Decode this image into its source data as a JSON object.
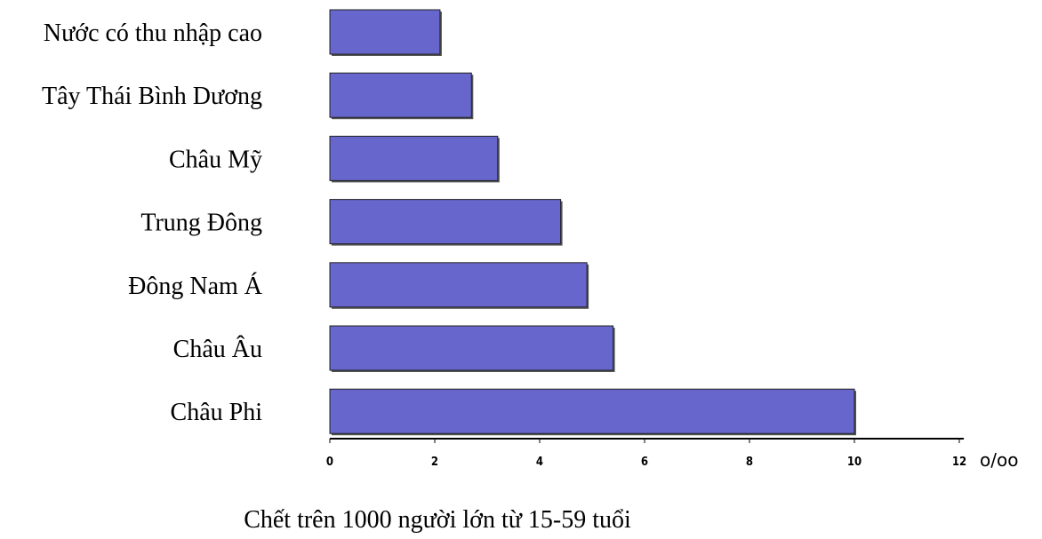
{
  "chart_data": {
    "type": "bar",
    "orientation": "horizontal",
    "categories": [
      "Nước có thu nhập cao",
      "Tây Thái Bình Dương",
      "Châu Mỹ",
      "Trung Đông",
      "Đông Nam Á",
      "Châu Âu",
      "Châu Phi"
    ],
    "values": [
      2.1,
      2.7,
      3.2,
      4.4,
      4.9,
      5.4,
      10.0
    ],
    "xticks": [
      "0",
      "2",
      "4",
      "6",
      "8",
      "10",
      "12"
    ],
    "xlim": [
      0,
      12
    ],
    "unit": "o/oo",
    "caption": "Chết trên 1000 người lớn từ 15-59 tuổi",
    "title": "",
    "xlabel": "",
    "ylabel": "",
    "grid": false,
    "bar_color": "#6666CC",
    "bar_edge_color": "#222222"
  }
}
